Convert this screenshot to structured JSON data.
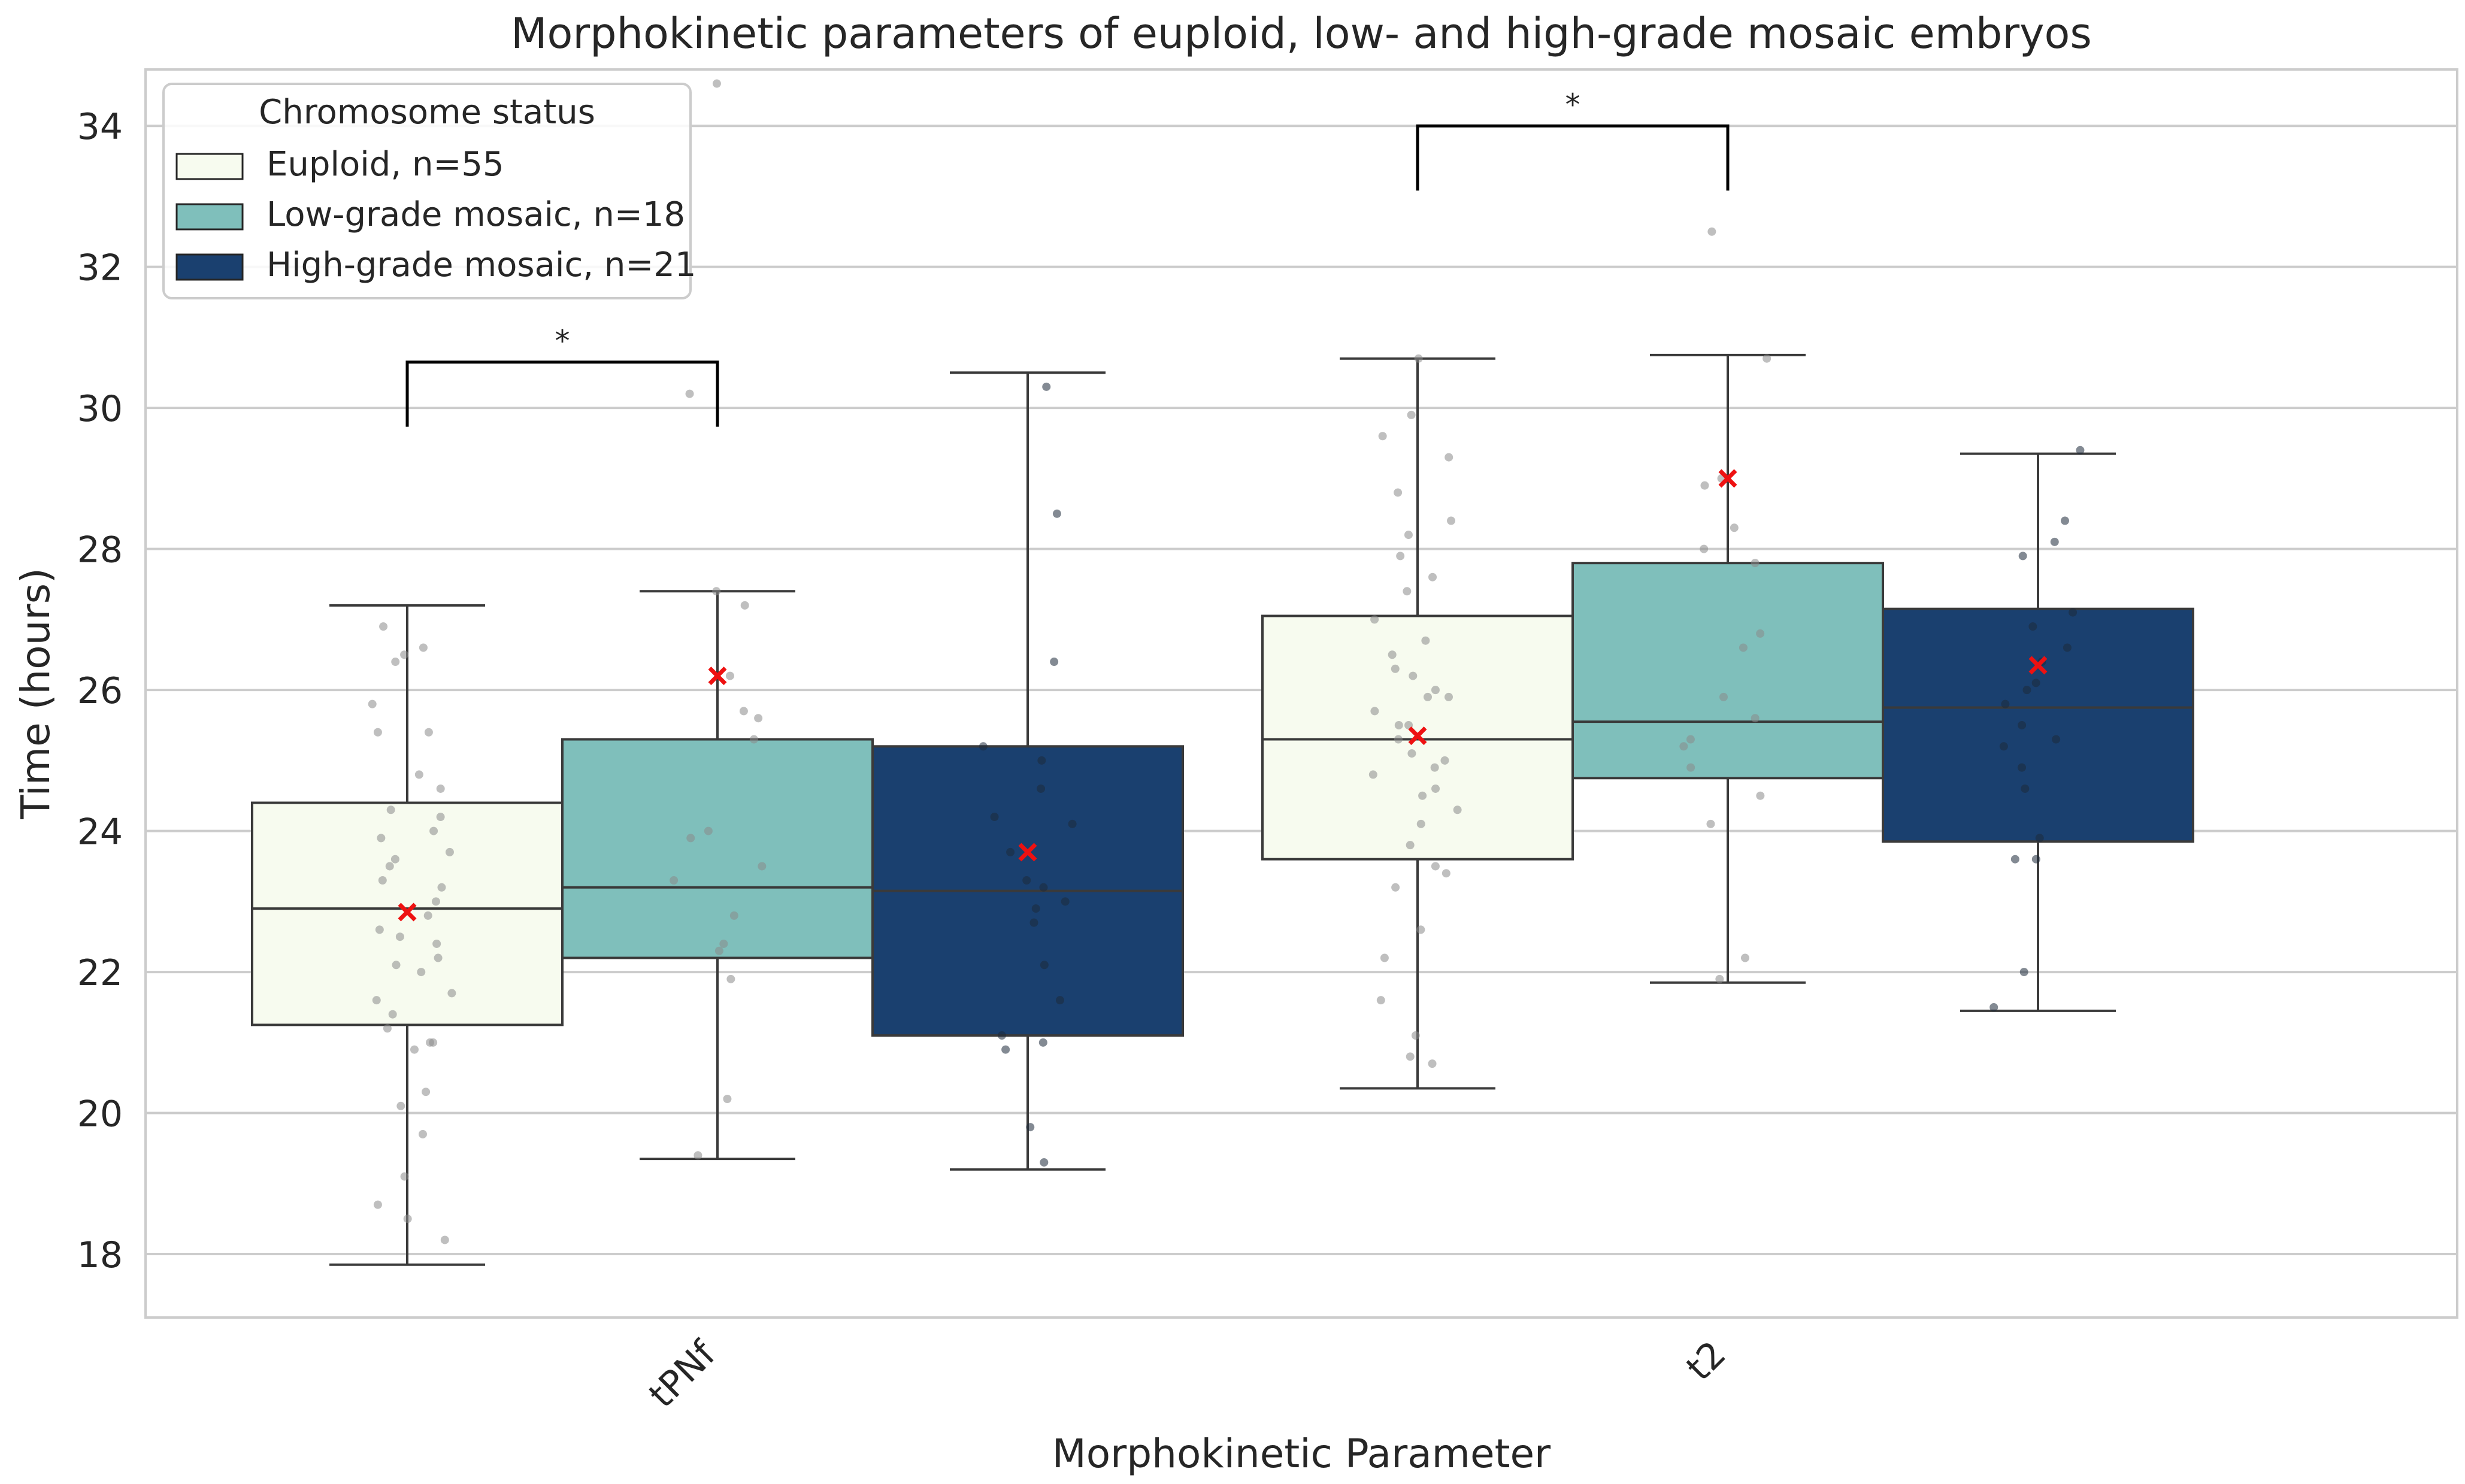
{
  "chart_data": {
    "type": "box",
    "title": "Morphokinetic parameters of euploid, low- and high-grade mosaic embryos",
    "xlabel": "Morphokinetic Parameter",
    "ylabel": "Time (hours)",
    "ylim": [
      17.1,
      34.8
    ],
    "yticks": [
      18,
      20,
      22,
      24,
      26,
      28,
      30,
      32,
      34
    ],
    "grid": true,
    "legend": {
      "title": "Chromosome status",
      "placement": "top-left",
      "entries": [
        "Euploid, n=55",
        "Low-grade mosaic, n=18",
        "High-grade mosaic, n=21"
      ]
    },
    "categories": [
      "tPNf",
      "t2"
    ],
    "series": [
      {
        "name": "Euploid, n=55",
        "color": "#f7fbef",
        "boxes": [
          {
            "whislo": 17.85,
            "q1": 21.25,
            "med": 22.9,
            "q3": 24.4,
            "whishi": 27.2,
            "mean": 22.85
          },
          {
            "whislo": 20.35,
            "q1": 23.6,
            "med": 25.3,
            "q3": 27.05,
            "whishi": 30.7,
            "mean": 25.35
          }
        ]
      },
      {
        "name": "Low-grade mosaic, n=18",
        "color": "#7fbfbb",
        "boxes": [
          {
            "whislo": 19.35,
            "q1": 22.2,
            "med": 23.2,
            "q3": 25.3,
            "whishi": 27.4,
            "mean": 26.2
          },
          {
            "whislo": 21.85,
            "q1": 24.75,
            "med": 25.55,
            "q3": 27.8,
            "whishi": 30.75,
            "mean": 29.0
          }
        ]
      },
      {
        "name": "High-grade mosaic, n=21",
        "color": "#1a406f",
        "boxes": [
          {
            "whislo": 19.2,
            "q1": 21.1,
            "med": 23.15,
            "q3": 25.2,
            "whishi": 30.5,
            "mean": 23.7
          },
          {
            "whislo": 21.45,
            "q1": 23.85,
            "med": 25.75,
            "q3": 27.15,
            "whishi": 29.35,
            "mean": 26.35
          }
        ]
      }
    ],
    "significance": [
      {
        "category": "tPNf",
        "from": "Euploid, n=55",
        "to": "Low-grade mosaic, n=18",
        "y": 30.65,
        "label": "*"
      },
      {
        "category": "t2",
        "from": "Euploid, n=55",
        "to": "Low-grade mosaic, n=18",
        "y": 34.0,
        "label": "*"
      }
    ],
    "points": [
      [
        [
          22.0,
          23.5,
          24.8,
          21.7,
          26.6,
          19.7,
          18.7,
          23.2,
          20.3,
          22.4,
          25.4,
          21.4,
          24.0,
          22.6,
          20.9,
          26.9,
          23.9,
          21.0,
          24.6,
          22.2,
          25.8,
          19.1,
          22.8,
          23.6,
          21.2,
          26.4,
          18.2,
          24.2,
          22.5,
          20.1,
          23.0,
          25.4,
          21.6,
          24.3,
          22.1,
          18.5,
          23.7,
          26.5,
          21.0,
          23.3
        ],
        [
          25.1,
          28.4,
          23.4,
          27.9,
          22.6,
          25.9,
          24.6,
          29.6,
          26.7,
          21.6,
          24.9,
          28.2,
          26.0,
          23.2,
          27.4,
          25.5,
          20.8,
          24.3,
          29.9,
          25.7,
          26.3,
          22.2,
          27.6,
          24.8,
          25.3,
          28.8,
          23.8,
          26.5,
          25.0,
          21.1,
          24.1,
          29.3,
          25.9,
          23.5,
          27.0,
          24.5,
          26.2,
          30.7,
          20.7,
          25.5
        ]
      ],
      [
        [
          27.4,
          25.6,
          23.9,
          22.3,
          25.3,
          20.2,
          23.3,
          26.2,
          21.9,
          24.0,
          27.2,
          22.8,
          19.4,
          25.7,
          23.5,
          34.6,
          30.2,
          22.4
        ],
        [
          26.6,
          24.5,
          28.3,
          22.2,
          25.3,
          30.7,
          24.9,
          28.9,
          25.9,
          27.8,
          24.1,
          26.8,
          28.0,
          25.6,
          21.9,
          29.0,
          25.2,
          32.5
        ]
      ],
      [
        [
          30.3,
          28.5,
          26.4,
          24.1,
          22.9,
          21.6,
          23.7,
          25.2,
          20.9,
          19.8,
          24.6,
          22.1,
          21.0,
          23.3,
          25.0,
          23.0,
          19.3,
          24.2,
          22.7,
          21.1,
          23.2
        ],
        [
          26.9,
          25.5,
          28.1,
          24.6,
          26.0,
          23.6,
          27.9,
          25.2,
          26.4,
          29.4,
          25.3,
          23.9,
          26.6,
          28.4,
          24.9,
          26.1,
          23.6,
          25.8,
          27.1,
          22.0,
          21.5
        ]
      ]
    ]
  }
}
